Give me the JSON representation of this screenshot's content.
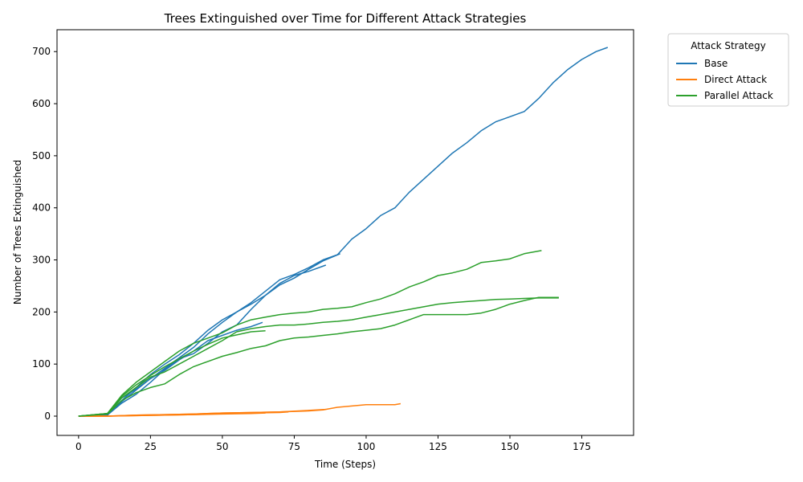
{
  "chart_data": {
    "type": "line",
    "title": "Trees Extinguished over Time for Different Attack Strategies",
    "xlabel": "Time (Steps)",
    "ylabel": "Number of Trees Extinguished",
    "xlim": [
      -7.5,
      193
    ],
    "ylim": [
      -37,
      742
    ],
    "xticks": [
      0,
      25,
      50,
      75,
      100,
      125,
      150,
      175
    ],
    "yticks": [
      0,
      100,
      200,
      300,
      400,
      500,
      600,
      700
    ],
    "grid": false,
    "legend": {
      "title": "Attack Strategy",
      "placement": "outside-right",
      "entries": [
        "Base",
        "Direct Attack",
        "Parallel Attack"
      ]
    },
    "colors": {
      "Base": "#1f77b4",
      "Direct Attack": "#ff7f0e",
      "Parallel Attack": "#2ca02c"
    },
    "series": [
      {
        "name": "Base",
        "x": [
          0,
          10,
          15,
          20,
          25,
          30,
          35,
          40,
          45,
          50,
          55,
          60,
          65,
          70,
          75,
          80,
          85,
          90,
          95,
          100,
          105,
          110,
          115,
          120,
          125,
          130,
          135,
          140,
          145,
          150,
          155,
          160,
          165,
          170,
          175,
          180,
          184
        ],
        "y": [
          0,
          2,
          30,
          55,
          80,
          100,
          118,
          140,
          165,
          185,
          200,
          218,
          240,
          262,
          272,
          285,
          300,
          310,
          340,
          360,
          385,
          400,
          430,
          455,
          480,
          505,
          525,
          548,
          565,
          575,
          585,
          610,
          640,
          665,
          685,
          700,
          708
        ]
      },
      {
        "name": "Base",
        "x": [
          0,
          10,
          15,
          20,
          25,
          30,
          35,
          40,
          45,
          50,
          55,
          60,
          65,
          70,
          75,
          80,
          85,
          91
        ],
        "y": [
          0,
          3,
          35,
          52,
          72,
          92,
          112,
          132,
          158,
          180,
          200,
          215,
          232,
          252,
          265,
          282,
          298,
          312
        ]
      },
      {
        "name": "Base",
        "x": [
          0,
          10,
          15,
          20,
          25,
          30,
          35,
          40,
          45,
          50,
          55,
          60,
          65,
          70,
          75,
          80,
          86
        ],
        "y": [
          0,
          2,
          25,
          42,
          65,
          90,
          110,
          120,
          140,
          162,
          175,
          205,
          232,
          255,
          270,
          278,
          290
        ]
      },
      {
        "name": "Base",
        "x": [
          0,
          10,
          15,
          20,
          25,
          30,
          35,
          40,
          45,
          50,
          55,
          60,
          64
        ],
        "y": [
          0,
          2,
          28,
          50,
          72,
          88,
          108,
          125,
          145,
          155,
          165,
          172,
          180
        ]
      },
      {
        "name": "Direct Attack",
        "x": [
          0,
          10,
          20,
          30,
          40,
          50,
          60,
          70,
          80,
          85,
          90,
          100,
          110,
          112
        ],
        "y": [
          0,
          0,
          2,
          3,
          4,
          6,
          7,
          8,
          10,
          12,
          17,
          22,
          22,
          24
        ]
      },
      {
        "name": "Direct Attack",
        "x": [
          0,
          10,
          20,
          30,
          40,
          50,
          60,
          70,
          80,
          86
        ],
        "y": [
          0,
          0,
          2,
          3,
          4,
          6,
          7,
          8,
          11,
          13
        ]
      },
      {
        "name": "Direct Attack",
        "x": [
          0,
          10,
          20,
          30,
          40,
          50,
          60,
          70,
          73
        ],
        "y": [
          0,
          0,
          1,
          2,
          3,
          5,
          6,
          7,
          8
        ]
      },
      {
        "name": "Direct Attack",
        "x": [
          0,
          10,
          20,
          30,
          40,
          50,
          60,
          65
        ],
        "y": [
          0,
          0,
          1,
          2,
          3,
          4,
          5,
          6
        ]
      },
      {
        "name": "Parallel Attack",
        "x": [
          0,
          10,
          15,
          20,
          25,
          30,
          35,
          40,
          45,
          50,
          55,
          60,
          65,
          70,
          75,
          80,
          85,
          90,
          95,
          100,
          105,
          110,
          115,
          120,
          125,
          130,
          135,
          140,
          145,
          150,
          155,
          161
        ],
        "y": [
          0,
          5,
          40,
          65,
          85,
          105,
          125,
          140,
          150,
          160,
          175,
          185,
          190,
          195,
          198,
          200,
          205,
          207,
          210,
          218,
          225,
          235,
          248,
          258,
          270,
          275,
          282,
          295,
          298,
          302,
          312,
          318
        ]
      },
      {
        "name": "Parallel Attack",
        "x": [
          0,
          10,
          15,
          20,
          25,
          30,
          35,
          40,
          45,
          50,
          55,
          60,
          65,
          70,
          75,
          80,
          85,
          90,
          95,
          100,
          105,
          110,
          115,
          120,
          125,
          130,
          135,
          140,
          145,
          150,
          155,
          160,
          167
        ],
        "y": [
          0,
          5,
          35,
          55,
          75,
          85,
          100,
          115,
          130,
          145,
          162,
          168,
          172,
          175,
          175,
          177,
          180,
          182,
          185,
          190,
          195,
          200,
          205,
          210,
          215,
          218,
          220,
          222,
          224,
          225,
          226,
          227,
          227
        ]
      },
      {
        "name": "Parallel Attack",
        "x": [
          0,
          10,
          15,
          20,
          25,
          30,
          35,
          40,
          45,
          50,
          55,
          60,
          65,
          70,
          75,
          80,
          85,
          90,
          95,
          100,
          105,
          110,
          115,
          120,
          125,
          130,
          135,
          140,
          145,
          150,
          155,
          160,
          167
        ],
        "y": [
          0,
          4,
          30,
          45,
          55,
          62,
          80,
          95,
          105,
          115,
          122,
          130,
          135,
          145,
          150,
          152,
          155,
          158,
          162,
          165,
          168,
          175,
          185,
          195,
          195,
          195,
          195,
          198,
          205,
          215,
          222,
          228,
          228
        ]
      },
      {
        "name": "Parallel Attack",
        "x": [
          0,
          10,
          15,
          20,
          25,
          30,
          35,
          40,
          45,
          50,
          55,
          60,
          65
        ],
        "y": [
          0,
          5,
          38,
          60,
          78,
          95,
          110,
          125,
          138,
          150,
          156,
          162,
          164
        ]
      }
    ]
  }
}
